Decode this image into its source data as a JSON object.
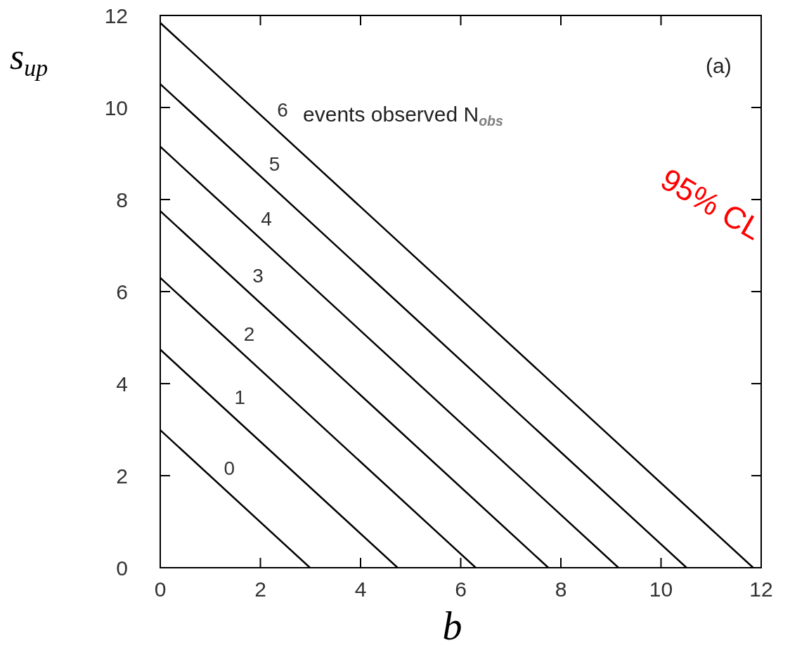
{
  "chart_data": {
    "type": "line",
    "xlabel": "b",
    "ylabel": "s$_{up}$",
    "annotations": [
      "events observed N$_{obs}$",
      "(a)",
      "95% CL"
    ],
    "xlim": [
      0,
      12
    ],
    "ylim": [
      0,
      12
    ],
    "xticks": [
      0,
      2,
      4,
      6,
      8,
      10,
      12
    ],
    "yticks": [
      0,
      2,
      4,
      6,
      8,
      10,
      12
    ],
    "grid": false,
    "marker": "none",
    "line_style": "solid",
    "series": [
      {
        "name": "0",
        "color": "#000000",
        "x": [
          0,
          2.99
        ],
        "values": [
          2.99,
          0
        ]
      },
      {
        "name": "1",
        "color": "#000000",
        "x": [
          0,
          4.74
        ],
        "values": [
          4.74,
          0
        ]
      },
      {
        "name": "2",
        "color": "#000000",
        "x": [
          0,
          6.3
        ],
        "values": [
          6.3,
          0
        ]
      },
      {
        "name": "3",
        "color": "#000000",
        "x": [
          0,
          7.75
        ],
        "values": [
          7.75,
          0
        ]
      },
      {
        "name": "4",
        "color": "#000000",
        "x": [
          0,
          9.15
        ],
        "values": [
          9.15,
          0
        ]
      },
      {
        "name": "5",
        "color": "#000000",
        "x": [
          0,
          10.51
        ],
        "values": [
          10.51,
          0
        ]
      },
      {
        "name": "6",
        "color": "#000000",
        "x": [
          0,
          11.84
        ],
        "values": [
          11.84,
          0
        ]
      }
    ]
  }
}
